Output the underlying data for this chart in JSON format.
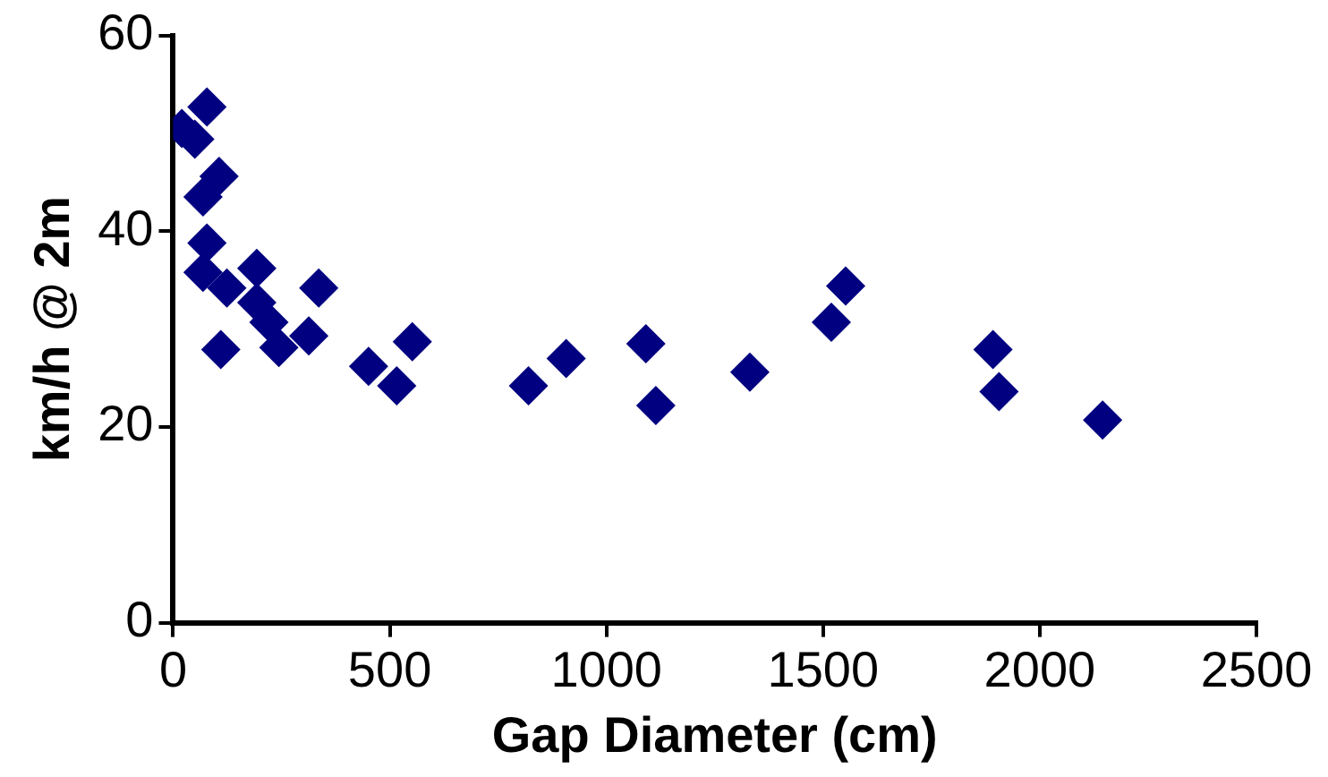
{
  "chart_data": {
    "type": "scatter",
    "xlabel": "Gap Diameter (cm)",
    "ylabel": "km/h @ 2m",
    "marker": "diamond",
    "grid": false,
    "legend": false,
    "xlim": [
      0,
      2500
    ],
    "xticks": [
      0,
      500,
      1000,
      1500,
      2000,
      2500
    ],
    "ylim": [
      0,
      60
    ],
    "yticks": [
      0,
      20,
      40,
      60
    ],
    "series": [
      {
        "color": "#000080",
        "x": [
          78,
          20,
          50,
          106,
          69,
          78,
          69,
          124,
          193,
          193,
          221,
          244,
          313,
          336,
          110,
          451,
          516,
          552,
          820,
          907,
          1091,
          1114,
          1331,
          1552,
          1519,
          1892,
          1906,
          2145
        ],
        "values": [
          52.7,
          50.5,
          49.4,
          45.6,
          43.5,
          38.8,
          35.8,
          34.2,
          36.2,
          32.7,
          30.7,
          28.1,
          29.3,
          34.2,
          27.9,
          26.2,
          24.2,
          28.7,
          24.2,
          27,
          28.5,
          22.2,
          25.6,
          34.4,
          30.7,
          27.9,
          23.6,
          20.7
        ]
      }
    ]
  }
}
